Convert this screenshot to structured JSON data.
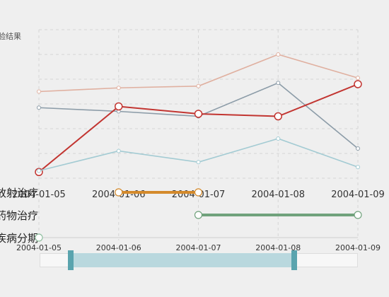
{
  "chart_data": [
    {
      "type": "line",
      "title": "",
      "ylabel": "检验结果",
      "xlabel": "",
      "categories": [
        "2004-01-05",
        "2004-01-06",
        "2004-01-07",
        "2004-01-08",
        "2004-01-09"
      ],
      "ylim": [
        0,
        6
      ],
      "grid": true,
      "series": [
        {
          "name": "",
          "color": "#e0b0a0",
          "values": [
            3.5,
            3.65,
            3.72,
            5.0,
            4.05
          ]
        },
        {
          "name": "",
          "color": "#8c9ca8",
          "values": [
            2.85,
            2.7,
            2.5,
            3.85,
            1.2
          ]
        },
        {
          "name": "",
          "color": "#c23531",
          "values": [
            0.25,
            2.9,
            2.6,
            2.5,
            3.8
          ],
          "emphasis": true
        },
        {
          "name": "",
          "color": "#a3cbd3",
          "values": [
            0.3,
            1.1,
            0.65,
            1.6,
            0.45
          ]
        }
      ]
    },
    {
      "type": "gantt",
      "categories": [
        "2004-01-05",
        "2004-01-06",
        "2004-01-07",
        "2004-01-08",
        "2004-01-09"
      ],
      "rows": [
        {
          "label": "放射治疗",
          "start": "2004-01-06",
          "end": "2004-01-07",
          "color": "#d48a2c"
        },
        {
          "label": "药物治疗",
          "start": "2004-01-07",
          "end": "2004-01-09",
          "color": "#70a27c"
        },
        {
          "label": "疾病分期",
          "start": "2004-01-05",
          "end": "2004-01-05",
          "color": "#8fbf9f"
        }
      ]
    }
  ],
  "data_zoom": {
    "start_label": "2004-01-05",
    "end_label": "2004-01-09",
    "range_start": 0.1,
    "range_end": 0.84
  }
}
